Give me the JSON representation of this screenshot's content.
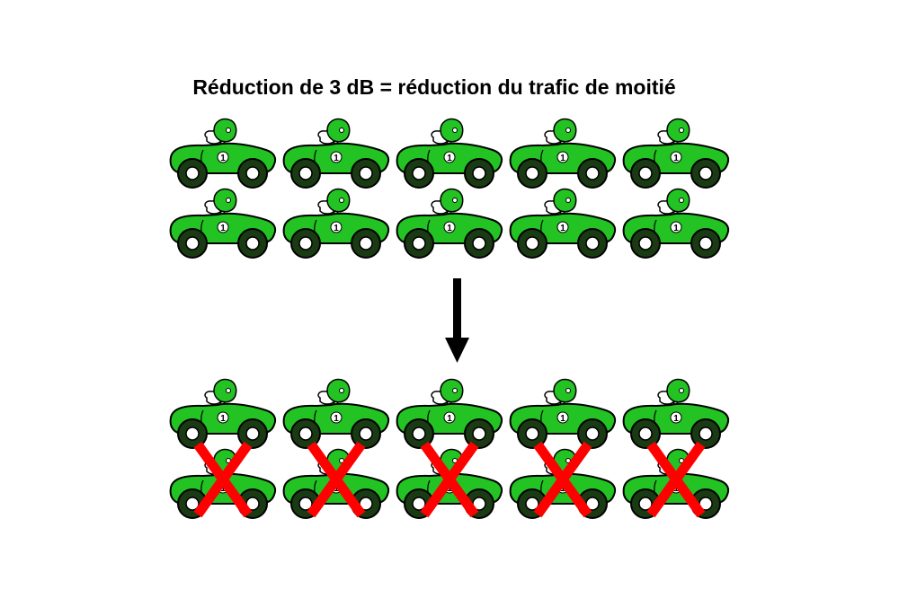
{
  "title": "Réduction de 3 dB = réduction du trafic de moitié",
  "car_number": "1",
  "colors": {
    "car_body": "#22c322",
    "car_outline": "#000000",
    "tire": "#1a3a14",
    "hubcap": "#ffffff",
    "helmet": "#22c322",
    "cross": "#ff0000",
    "arrow": "#000000"
  },
  "top_group": {
    "rows": 2,
    "cars_per_row": 5,
    "crossed_rows": []
  },
  "bottom_group": {
    "rows": 2,
    "cars_per_row": 5,
    "crossed_rows": [
      2
    ]
  },
  "arrow": {
    "direction": "down"
  }
}
